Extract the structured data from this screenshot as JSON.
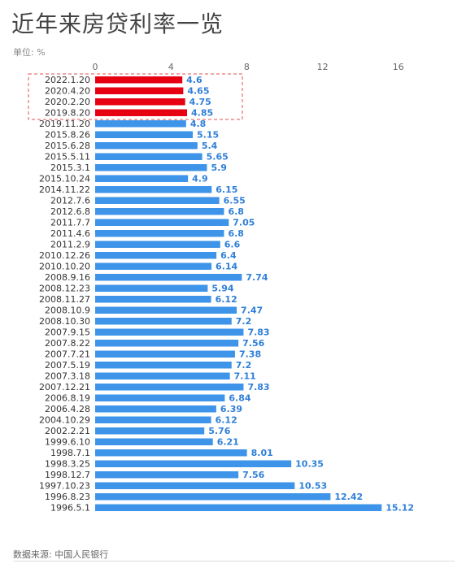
{
  "title": "近年来房贷利率一览",
  "unit_label": "单位: %",
  "source": "数据来源: 中国人民银行",
  "colors": {
    "highlight": "#e60012",
    "normal": "#3d94e8",
    "value_text": "#2f7fd8",
    "highlight_box": "#e05050"
  },
  "chart_data": {
    "type": "bar",
    "orientation": "horizontal",
    "title": "近年来房贷利率一览",
    "xlabel": "",
    "ylabel": "",
    "xlim": [
      0,
      16
    ],
    "x_ticks": [
      0,
      4,
      8,
      12,
      16
    ],
    "grid": false,
    "categories": [
      "2022.1.20",
      "2020.4.20",
      "2020.2.20",
      "2019.8.20",
      "2019.11.20",
      "2015.8.26",
      "2015.6.28",
      "2015.5.11",
      "2015.3.1",
      "2015.10.24",
      "2014.11.22",
      "2012.7.6",
      "2012.6.8",
      "2011.7.7",
      "2011.4.6",
      "2011.2.9",
      "2010.12.26",
      "2010.10.20",
      "2008.9.16",
      "2008.12.23",
      "2008.11.27",
      "2008.10.9",
      "2008.10.30",
      "2007.9.15",
      "2007.8.22",
      "2007.7.21",
      "2007.5.19",
      "2007.3.18",
      "2007.12.21",
      "2006.8.19",
      "2006.4.28",
      "2004.10.29",
      "2002.2.21",
      "1999.6.10",
      "1998.7.1",
      "1998.3.25",
      "1998.12.7",
      "1997.10.23",
      "1996.8.23",
      "1996.5.1"
    ],
    "values": [
      4.6,
      4.65,
      4.75,
      4.85,
      4.8,
      5.15,
      5.4,
      5.65,
      5.9,
      4.9,
      6.15,
      6.55,
      6.8,
      7.05,
      6.8,
      6.6,
      6.4,
      6.14,
      7.74,
      5.94,
      6.12,
      7.47,
      7.2,
      7.83,
      7.56,
      7.38,
      7.2,
      7.11,
      7.83,
      6.84,
      6.39,
      6.12,
      5.76,
      6.21,
      8.01,
      10.35,
      7.56,
      10.53,
      12.42,
      15.12
    ],
    "value_labels": [
      "4.6",
      "4.65",
      "4.75",
      "4.85",
      "4.8",
      "5.15",
      "5.4",
      "5.65",
      "5.9",
      "4.9",
      "6.15",
      "6.55",
      "6.8",
      "7.05",
      "6.8",
      "6.6",
      "6.4",
      "6.14",
      "7.74",
      "5.94",
      "6.12",
      "7.47",
      "7.2",
      "7.83",
      "7.56",
      "7.38",
      "7.2",
      "7.11",
      "7.83",
      "6.84",
      "6.39",
      "6.12",
      "5.76",
      "6.21",
      "8.01",
      "10.35",
      "7.56",
      "10.53",
      "12.42",
      "15.12"
    ],
    "highlighted": [
      0,
      1,
      2,
      3
    ]
  }
}
